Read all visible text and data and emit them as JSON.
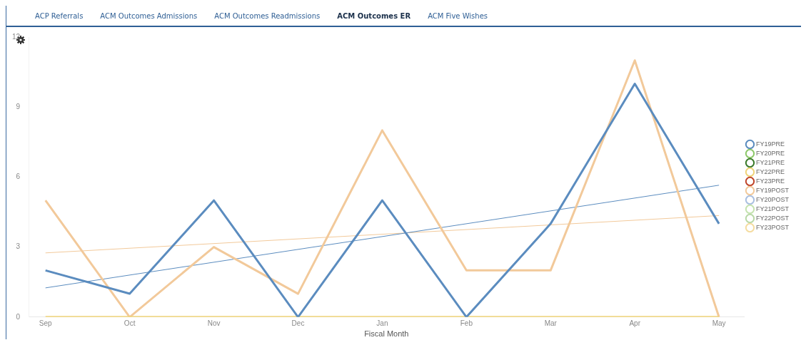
{
  "chart_data": {
    "type": "line",
    "xlabel": "Fiscal Month",
    "annotations": [
      "ACP Referrals",
      "ACM Outcomes Admissions",
      "ACM Outcomes Readmissions",
      "ACM Outcomes ER",
      "ACM Five Wishes"
    ],
    "categories": [
      "Sep",
      "Oct",
      "Nov",
      "Dec",
      "Jan",
      "Feb",
      "Mar",
      "Apr",
      "May"
    ],
    "ylim": [
      0,
      12
    ],
    "yticks": [
      0,
      3,
      6,
      9,
      12
    ],
    "grid": false,
    "legend": "right",
    "marker": "none",
    "line_style": "solid",
    "series": [
      {
        "name": "FY19PRE",
        "color": "#5b8cbf",
        "values": [
          2,
          1,
          5,
          0,
          5,
          0,
          4,
          10,
          4
        ]
      },
      {
        "name": "FY20PRE",
        "color": "#8dc86a",
        "values": [
          null,
          null,
          null,
          null,
          null,
          null,
          null,
          null,
          null
        ]
      },
      {
        "name": "FY21PRE",
        "color": "#3a7a2a",
        "values": [
          null,
          null,
          null,
          null,
          null,
          null,
          null,
          null,
          null
        ]
      },
      {
        "name": "FY22PRE",
        "color": "#f0d47a",
        "values": [
          0,
          0,
          0,
          0,
          0,
          0,
          0,
          0,
          0
        ]
      },
      {
        "name": "FY23PRE",
        "color": "#c0452a",
        "values": [
          null,
          null,
          null,
          null,
          null,
          null,
          null,
          null,
          null
        ]
      },
      {
        "name": "FY19POST",
        "color": "#f2c99a",
        "values": [
          5,
          0,
          3,
          1,
          8,
          2,
          2,
          11,
          0
        ]
      },
      {
        "name": "FY20POST",
        "color": "#a9bfe0",
        "values": [
          null,
          null,
          null,
          null,
          null,
          null,
          null,
          null,
          null
        ]
      },
      {
        "name": "FY21POST",
        "color": "#c5e3b0",
        "values": [
          null,
          null,
          null,
          null,
          null,
          null,
          null,
          null,
          null
        ]
      },
      {
        "name": "FY22POST",
        "color": "#b9d9a8",
        "values": [
          null,
          null,
          null,
          null,
          null,
          null,
          null,
          null,
          null
        ]
      },
      {
        "name": "FY23POST",
        "color": "#f5dca0",
        "values": [
          null,
          null,
          null,
          null,
          null,
          null,
          null,
          null,
          null
        ]
      },
      {
        "type": "line",
        "color": "#5b8cbf",
        "x": [
          "Sep",
          "May"
        ],
        "values": [
          1.25,
          5.65
        ]
      },
      {
        "type": "line",
        "color": "#f2c99a",
        "x": [
          "Sep",
          "May"
        ],
        "values": [
          2.75,
          4.35
        ]
      }
    ]
  }
}
